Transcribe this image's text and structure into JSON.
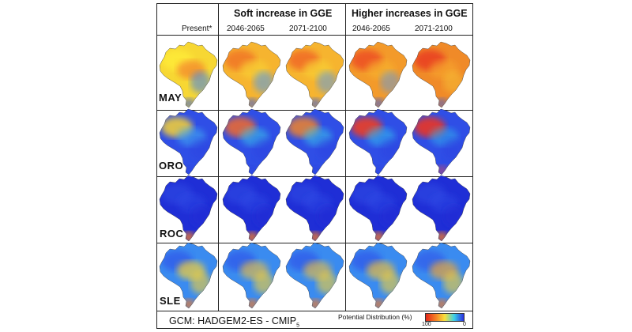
{
  "headers": {
    "present": "Present*",
    "soft": "Soft increase in GGE",
    "higher": "Higher increases in GGE",
    "periods": [
      "2046-2065",
      "2071-2100",
      "2046-2065",
      "2071-2100"
    ]
  },
  "rows": [
    {
      "label": "MAY",
      "scenes": [
        {
          "name": "present",
          "bg": "#f7d733",
          "blobs": [
            {
              "c": "#ffec3a",
              "o": 0.8
            },
            {
              "c": "#f26a2a",
              "o": 0.55
            },
            {
              "c": "#3b7ef0",
              "o": 0.55
            },
            {
              "c": "#2f59e8",
              "o": 0.6
            }
          ]
        },
        {
          "name": "soft-2046-2065",
          "bg": "#f6b42f",
          "blobs": [
            {
              "c": "#f06a25",
              "o": 0.7
            },
            {
              "c": "#f8cf34",
              "o": 0.7
            },
            {
              "c": "#4d9af2",
              "o": 0.55
            },
            {
              "c": "#2f59e8",
              "o": 0.6
            }
          ]
        },
        {
          "name": "soft-2071-2100",
          "bg": "#f6b42f",
          "blobs": [
            {
              "c": "#ef5a22",
              "o": 0.7
            },
            {
              "c": "#f8cf34",
              "o": 0.7
            },
            {
              "c": "#4d9af2",
              "o": 0.5
            },
            {
              "c": "#2f59e8",
              "o": 0.6
            }
          ]
        },
        {
          "name": "higher-2046-2065",
          "bg": "#f39a2a",
          "blobs": [
            {
              "c": "#ec4322",
              "o": 0.75
            },
            {
              "c": "#f6b42f",
              "o": 0.6
            },
            {
              "c": "#4d9af2",
              "o": 0.45
            },
            {
              "c": "#2f59e8",
              "o": 0.6
            }
          ]
        },
        {
          "name": "higher-2071-2100",
          "bg": "#f08a28",
          "blobs": [
            {
              "c": "#e93a20",
              "o": 0.8
            },
            {
              "c": "#f6a62c",
              "o": 0.6
            },
            {
              "c": "#f8cf34",
              "o": 0.4
            },
            {
              "c": "#2f59e8",
              "o": 0.55
            }
          ]
        }
      ]
    },
    {
      "label": "ORO",
      "scenes": [
        {
          "name": "present",
          "bg": "#2f4ee6",
          "blobs": [
            {
              "c": "#f8d234",
              "o": 0.85
            },
            {
              "c": "#3fa8f0",
              "o": 0.6
            },
            {
              "c": "#2a3fdf",
              "o": 0.5
            },
            {
              "c": "#2a3fdf",
              "o": 0.5
            }
          ]
        },
        {
          "name": "soft-2046-2065",
          "bg": "#2f4ee6",
          "blobs": [
            {
              "c": "#f26a2a",
              "o": 0.85
            },
            {
              "c": "#38c4e8",
              "o": 0.55
            },
            {
              "c": "#2a3fdf",
              "o": 0.5
            },
            {
              "c": "#2a3fdf",
              "o": 0.5
            }
          ]
        },
        {
          "name": "soft-2071-2100",
          "bg": "#2f4ee6",
          "blobs": [
            {
              "c": "#f08228",
              "o": 0.85
            },
            {
              "c": "#38c4e8",
              "o": 0.55
            },
            {
              "c": "#2a3fdf",
              "o": 0.5
            },
            {
              "c": "#2a3fdf",
              "o": 0.5
            }
          ]
        },
        {
          "name": "higher-2046-2065",
          "bg": "#2f4ee6",
          "blobs": [
            {
              "c": "#ec3f22",
              "o": 0.9
            },
            {
              "c": "#34b6ec",
              "o": 0.6
            },
            {
              "c": "#2a3fdf",
              "o": 0.5
            },
            {
              "c": "#2a3fdf",
              "o": 0.5
            }
          ]
        },
        {
          "name": "higher-2071-2100",
          "bg": "#2f4ee6",
          "blobs": [
            {
              "c": "#ea3424",
              "o": 0.9
            },
            {
              "c": "#34b6ec",
              "o": 0.5
            },
            {
              "c": "#2a3fdf",
              "o": 0.5
            },
            {
              "c": "#e04550",
              "o": 0.5
            }
          ]
        }
      ]
    },
    {
      "label": "ROC",
      "scenes": [
        {
          "name": "present",
          "bg": "#1f2ed6",
          "blobs": [
            {
              "c": "#2f4de8",
              "o": 0.5
            },
            {
              "c": "#2f4de8",
              "o": 0.4
            },
            {
              "c": "#1f2ed6",
              "o": 0.5
            },
            {
              "c": "#f07a2a",
              "o": 0.85
            }
          ]
        },
        {
          "name": "soft-2046-2065",
          "bg": "#1f2ed6",
          "blobs": [
            {
              "c": "#2f4de8",
              "o": 0.5
            },
            {
              "c": "#2f4de8",
              "o": 0.4
            },
            {
              "c": "#1f2ed6",
              "o": 0.5
            },
            {
              "c": "#f07a2a",
              "o": 0.85
            }
          ]
        },
        {
          "name": "soft-2071-2100",
          "bg": "#1f2ed6",
          "blobs": [
            {
              "c": "#2f4de8",
              "o": 0.5
            },
            {
              "c": "#2f4de8",
              "o": 0.4
            },
            {
              "c": "#1f2ed6",
              "o": 0.5
            },
            {
              "c": "#f07a2a",
              "o": 0.85
            }
          ]
        },
        {
          "name": "higher-2046-2065",
          "bg": "#1f2ed6",
          "blobs": [
            {
              "c": "#2f4de8",
              "o": 0.5
            },
            {
              "c": "#2f4de8",
              "o": 0.4
            },
            {
              "c": "#1f2ed6",
              "o": 0.5
            },
            {
              "c": "#f07a2a",
              "o": 0.85
            }
          ]
        },
        {
          "name": "higher-2071-2100",
          "bg": "#1f2ed6",
          "blobs": [
            {
              "c": "#2f4de8",
              "o": 0.5
            },
            {
              "c": "#2f4de8",
              "o": 0.4
            },
            {
              "c": "#1f2ed6",
              "o": 0.5
            },
            {
              "c": "#f07a2a",
              "o": 0.85
            }
          ]
        }
      ]
    },
    {
      "label": "SLE",
      "scenes": [
        {
          "name": "present",
          "bg": "#3a8bf0",
          "blobs": [
            {
              "c": "#2f4de8",
              "o": 0.6
            },
            {
              "c": "#f8d234",
              "o": 0.7
            },
            {
              "c": "#f8d234",
              "o": 0.6
            },
            {
              "c": "#f07a2a",
              "o": 0.75
            }
          ]
        },
        {
          "name": "soft-2046-2065",
          "bg": "#3a8bf0",
          "blobs": [
            {
              "c": "#2f4de8",
              "o": 0.6
            },
            {
              "c": "#f6c232",
              "o": 0.6
            },
            {
              "c": "#f8d234",
              "o": 0.6
            },
            {
              "c": "#f07a2a",
              "o": 0.75
            }
          ]
        },
        {
          "name": "soft-2071-2100",
          "bg": "#3a8bf0",
          "blobs": [
            {
              "c": "#2f4de8",
              "o": 0.6
            },
            {
              "c": "#f6c232",
              "o": 0.6
            },
            {
              "c": "#f8d234",
              "o": 0.6
            },
            {
              "c": "#f07a2a",
              "o": 0.75
            }
          ]
        },
        {
          "name": "higher-2046-2065",
          "bg": "#3a8bf0",
          "blobs": [
            {
              "c": "#2f4de8",
              "o": 0.6
            },
            {
              "c": "#f6c232",
              "o": 0.65
            },
            {
              "c": "#f8d234",
              "o": 0.6
            },
            {
              "c": "#f07a2a",
              "o": 0.75
            }
          ]
        },
        {
          "name": "higher-2071-2100",
          "bg": "#3a8bf0",
          "blobs": [
            {
              "c": "#2f4de8",
              "o": 0.55
            },
            {
              "c": "#f6a62c",
              "o": 0.65
            },
            {
              "c": "#f8d234",
              "o": 0.6
            },
            {
              "c": "#f07a2a",
              "o": 0.75
            }
          ]
        }
      ]
    }
  ],
  "footer": {
    "gcm_text": "GCM: HADGEM2-ES  -  CMIP",
    "gcm_sub": "5",
    "legend_title": "Potential Distribution (%)",
    "legend_high": "100",
    "legend_low": "0",
    "legend_colors": [
      "#e32418",
      "#f47c24",
      "#f8e03a",
      "#3ad0e8",
      "#2a2ee0"
    ]
  }
}
